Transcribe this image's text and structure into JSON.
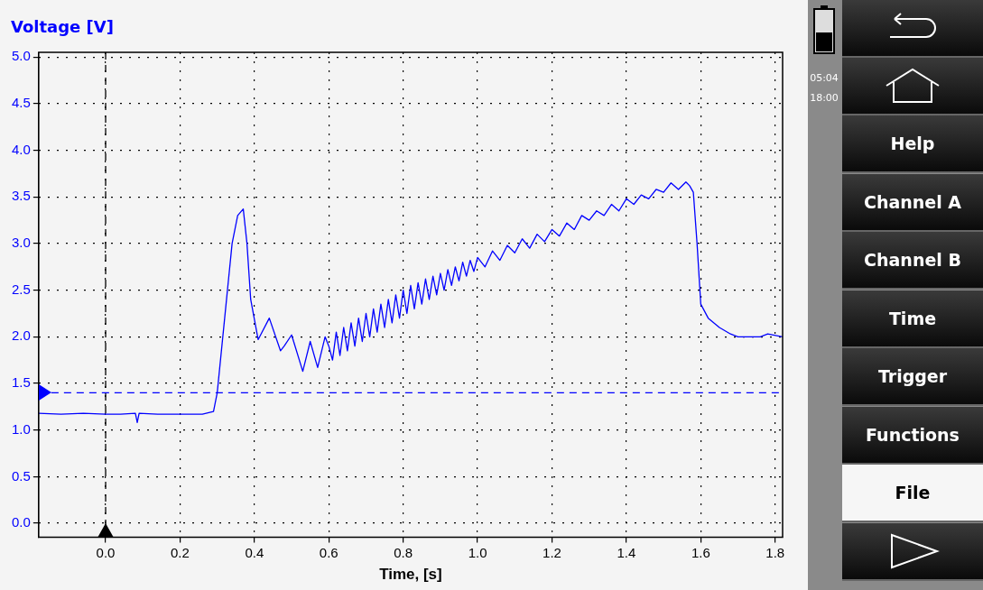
{
  "chart_data": {
    "type": "line",
    "xlabel": "Time, [s]",
    "ylabel": "Voltage [V]",
    "xlim": [
      -0.18,
      1.82
    ],
    "ylim": [
      -0.15,
      5.05
    ],
    "xticks": [
      {
        "value": 0,
        "label": "0.0"
      },
      {
        "value": 0.2,
        "label": "0.2"
      },
      {
        "value": 0.4,
        "label": "0.4"
      },
      {
        "value": 0.6,
        "label": "0.6"
      },
      {
        "value": 0.8,
        "label": "0.8"
      },
      {
        "value": 1.0,
        "label": "1.0"
      },
      {
        "value": 1.2,
        "label": "1.2"
      },
      {
        "value": 1.4,
        "label": "1.4"
      },
      {
        "value": 1.6,
        "label": "1.6"
      },
      {
        "value": 1.8,
        "label": "1.8"
      }
    ],
    "yticks": [
      {
        "value": 0,
        "label": "0.0"
      },
      {
        "value": 0.5,
        "label": "0.5"
      },
      {
        "value": 1,
        "label": "1.0"
      },
      {
        "value": 1.5,
        "label": "1.5"
      },
      {
        "value": 2,
        "label": "2.0"
      },
      {
        "value": 2.5,
        "label": "2.5"
      },
      {
        "value": 3,
        "label": "3.0"
      },
      {
        "value": 3.5,
        "label": "3.5"
      },
      {
        "value": 4,
        "label": "4.0"
      },
      {
        "value": 4.5,
        "label": "4.5"
      },
      {
        "value": 5,
        "label": "5.0"
      }
    ],
    "grid": true,
    "legend": false,
    "marker": "none",
    "line_style": "solid",
    "ref_lines": [
      {
        "axis": "y",
        "value": 1.4,
        "color": "#0000ff",
        "line_style": "dashed"
      },
      {
        "axis": "x",
        "value": 0,
        "color": "#000000",
        "line_style": "dashed"
      }
    ],
    "annotations": [
      "Help",
      "Channel A",
      "Channel B",
      "Time",
      "Trigger",
      "Functions",
      "File",
      "05:04",
      "18:00"
    ],
    "series": [
      {
        "color": "#0000ff",
        "x": [
          -0.18,
          -0.12,
          -0.06,
          0.0,
          0.04,
          0.08,
          0.085,
          0.09,
          0.14,
          0.2,
          0.26,
          0.29,
          0.3,
          0.32,
          0.34,
          0.355,
          0.37,
          0.38,
          0.39,
          0.41,
          0.44,
          0.47,
          0.48,
          0.5,
          0.53,
          0.55,
          0.57,
          0.59,
          0.6,
          0.61,
          0.62,
          0.63,
          0.64,
          0.65,
          0.66,
          0.67,
          0.68,
          0.69,
          0.7,
          0.71,
          0.72,
          0.73,
          0.74,
          0.75,
          0.76,
          0.77,
          0.78,
          0.79,
          0.8,
          0.81,
          0.82,
          0.83,
          0.84,
          0.85,
          0.86,
          0.87,
          0.88,
          0.89,
          0.9,
          0.91,
          0.92,
          0.93,
          0.94,
          0.95,
          0.96,
          0.97,
          0.98,
          0.99,
          1.0,
          1.02,
          1.04,
          1.06,
          1.08,
          1.1,
          1.12,
          1.14,
          1.16,
          1.18,
          1.2,
          1.22,
          1.24,
          1.26,
          1.28,
          1.3,
          1.32,
          1.34,
          1.36,
          1.38,
          1.4,
          1.42,
          1.44,
          1.46,
          1.48,
          1.5,
          1.52,
          1.54,
          1.56,
          1.57,
          1.58,
          1.59,
          1.6,
          1.62,
          1.65,
          1.68,
          1.7,
          1.76,
          1.78,
          1.82
        ],
        "values": [
          1.18,
          1.17,
          1.18,
          1.17,
          1.17,
          1.18,
          1.08,
          1.18,
          1.17,
          1.17,
          1.17,
          1.2,
          1.4,
          2.2,
          3.0,
          3.3,
          3.37,
          3.0,
          2.4,
          1.97,
          2.2,
          1.85,
          1.9,
          2.02,
          1.63,
          1.95,
          1.67,
          2.0,
          1.9,
          1.75,
          2.05,
          1.8,
          2.1,
          1.85,
          2.15,
          1.9,
          2.2,
          1.95,
          2.25,
          2.0,
          2.3,
          2.05,
          2.35,
          2.1,
          2.4,
          2.15,
          2.45,
          2.2,
          2.5,
          2.25,
          2.55,
          2.3,
          2.58,
          2.35,
          2.62,
          2.4,
          2.65,
          2.45,
          2.68,
          2.5,
          2.72,
          2.55,
          2.75,
          2.6,
          2.8,
          2.65,
          2.82,
          2.7,
          2.85,
          2.75,
          2.92,
          2.82,
          2.98,
          2.9,
          3.05,
          2.95,
          3.1,
          3.02,
          3.15,
          3.08,
          3.22,
          3.15,
          3.3,
          3.25,
          3.35,
          3.3,
          3.42,
          3.35,
          3.48,
          3.42,
          3.52,
          3.48,
          3.58,
          3.55,
          3.65,
          3.58,
          3.66,
          3.62,
          3.55,
          3.0,
          2.35,
          2.2,
          2.1,
          2.03,
          2.0,
          2.0,
          2.03,
          2.0
        ]
      }
    ]
  }
}
